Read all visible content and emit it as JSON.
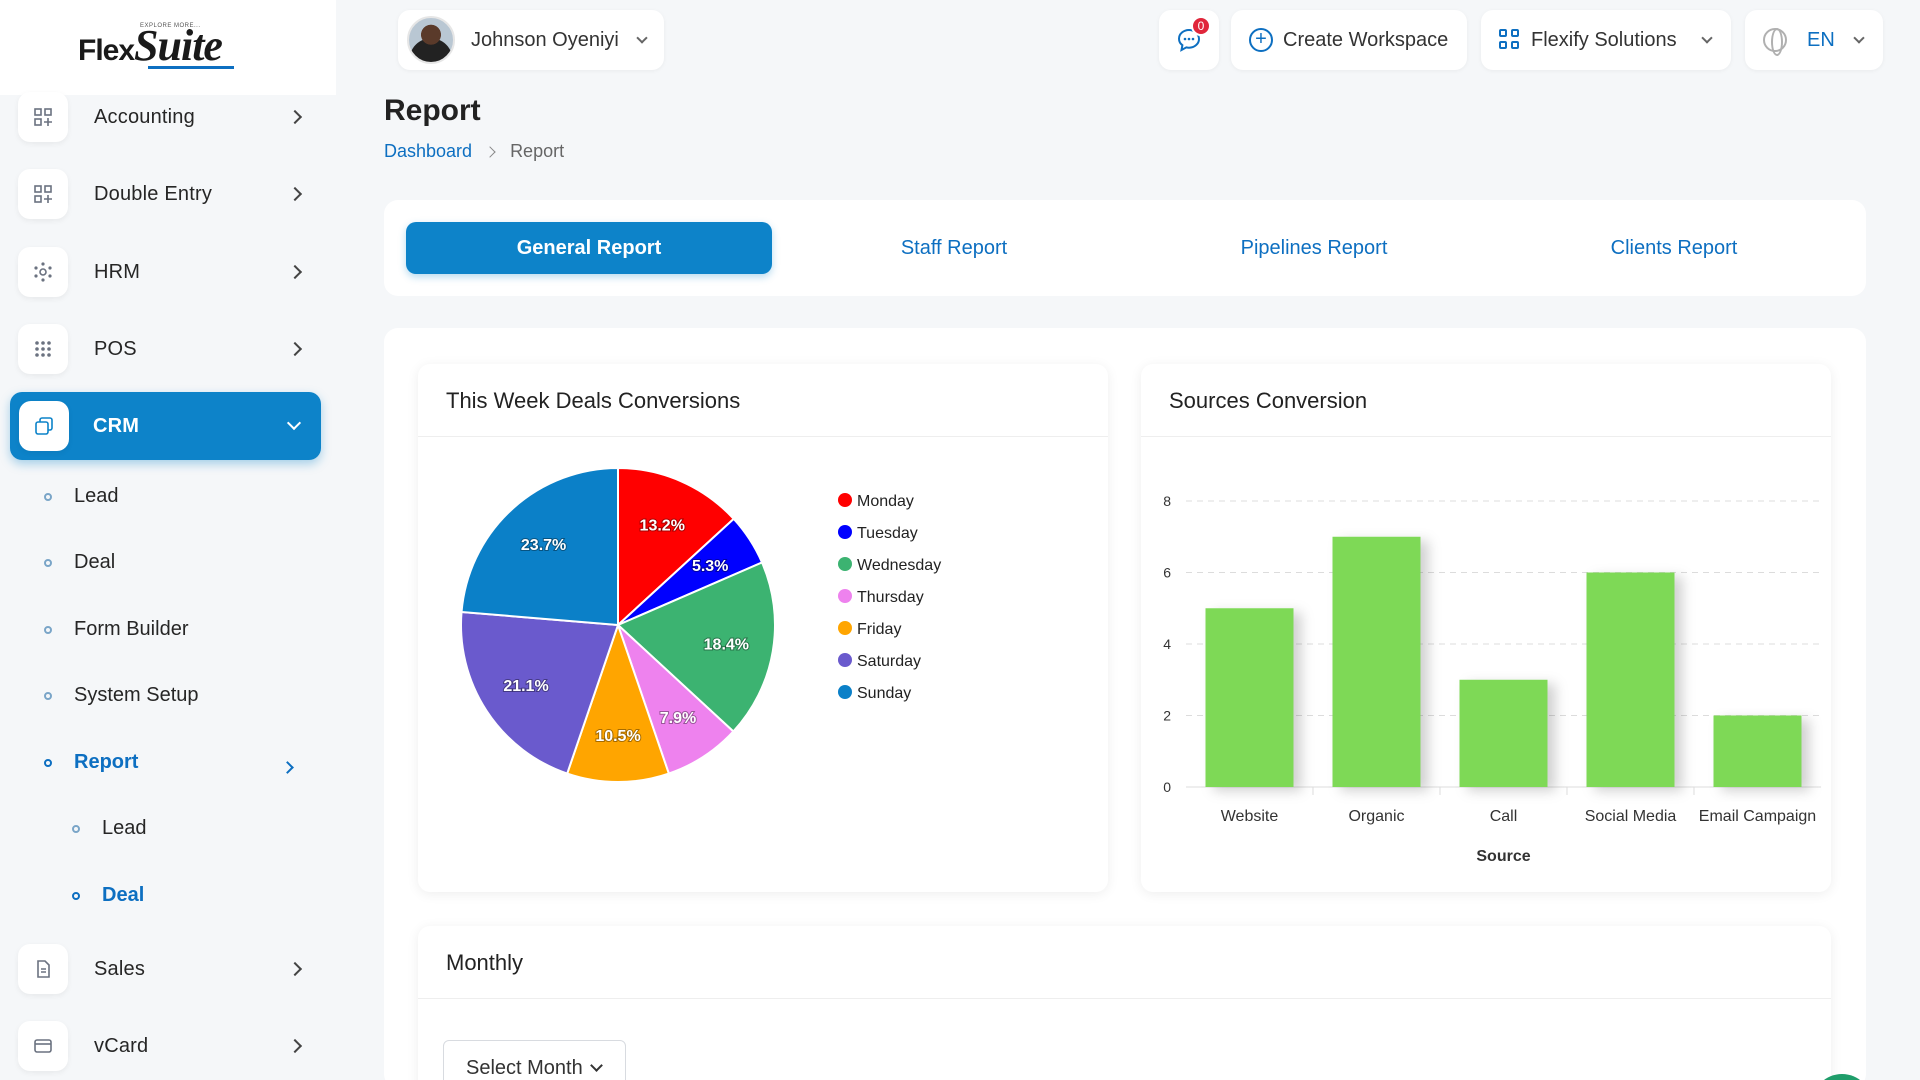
{
  "brand": {
    "logo_flex": "Flex",
    "logo_suite": "Suite",
    "logo_tagline": "EXPLORE MORE..."
  },
  "sidebar": {
    "items": [
      {
        "label": "Accounting",
        "icon": "apps-icon"
      },
      {
        "label": "Double Entry",
        "icon": "apps-icon"
      },
      {
        "label": "HRM",
        "icon": "network-icon"
      },
      {
        "label": "POS",
        "icon": "dots-grid-icon"
      },
      {
        "label": "CRM",
        "icon": "copy-icon",
        "active": true
      },
      {
        "label": "Sales",
        "icon": "document-icon"
      },
      {
        "label": "vCard",
        "icon": "card-icon"
      }
    ],
    "crm_sub": [
      {
        "label": "Lead"
      },
      {
        "label": "Deal"
      },
      {
        "label": "Form Builder"
      },
      {
        "label": "System Setup"
      },
      {
        "label": "Report",
        "active": true
      }
    ],
    "report_sub": [
      {
        "label": "Lead"
      },
      {
        "label": "Deal",
        "active": true
      }
    ]
  },
  "header": {
    "user_name": "Johnson Oyeniyi",
    "message_count": "0",
    "create_workspace": "Create Workspace",
    "workspace": "Flexify Solutions",
    "language": "EN"
  },
  "page": {
    "title": "Report",
    "breadcrumb": [
      "Dashboard",
      "Report"
    ]
  },
  "tabs": [
    {
      "label": "General Report",
      "active": true
    },
    {
      "label": "Staff Report"
    },
    {
      "label": "Pipelines Report"
    },
    {
      "label": "Clients Report"
    }
  ],
  "panels": {
    "pie_title": "This Week Deals Conversions",
    "bar_title": "Sources Conversion",
    "monthly_title": "Monthly",
    "select_month": "Select Month"
  },
  "colors": {
    "accent": "#0d83c9",
    "link": "#0d6fc1",
    "bar": "#7ed957"
  },
  "chart_data": [
    {
      "type": "pie",
      "title": "This Week Deals Conversions",
      "legend_position": "right",
      "slices": [
        {
          "label": "Monday",
          "value": 13.2,
          "color": "#ff0000"
        },
        {
          "label": "Tuesday",
          "value": 5.3,
          "color": "#0000ff"
        },
        {
          "label": "Wednesday",
          "value": 18.4,
          "color": "#3cb371"
        },
        {
          "label": "Thursday",
          "value": 7.9,
          "color": "#ee82ee"
        },
        {
          "label": "Friday",
          "value": 10.5,
          "color": "#ffa500"
        },
        {
          "label": "Saturday",
          "value": 21.1,
          "color": "#6a5acd"
        },
        {
          "label": "Sunday",
          "value": 23.7,
          "color": "#0b80c8"
        }
      ]
    },
    {
      "type": "bar",
      "title": "Sources Conversion",
      "categories": [
        "Website",
        "Organic",
        "Call",
        "Social Media",
        "Email Campaign"
      ],
      "values": [
        5,
        7,
        3,
        6,
        2
      ],
      "xlabel": "Source",
      "ylabel": "",
      "ylim": [
        0,
        8
      ],
      "yticks": [
        0,
        2,
        4,
        6,
        8
      ],
      "grid": true,
      "color": "#7ed957"
    }
  ]
}
